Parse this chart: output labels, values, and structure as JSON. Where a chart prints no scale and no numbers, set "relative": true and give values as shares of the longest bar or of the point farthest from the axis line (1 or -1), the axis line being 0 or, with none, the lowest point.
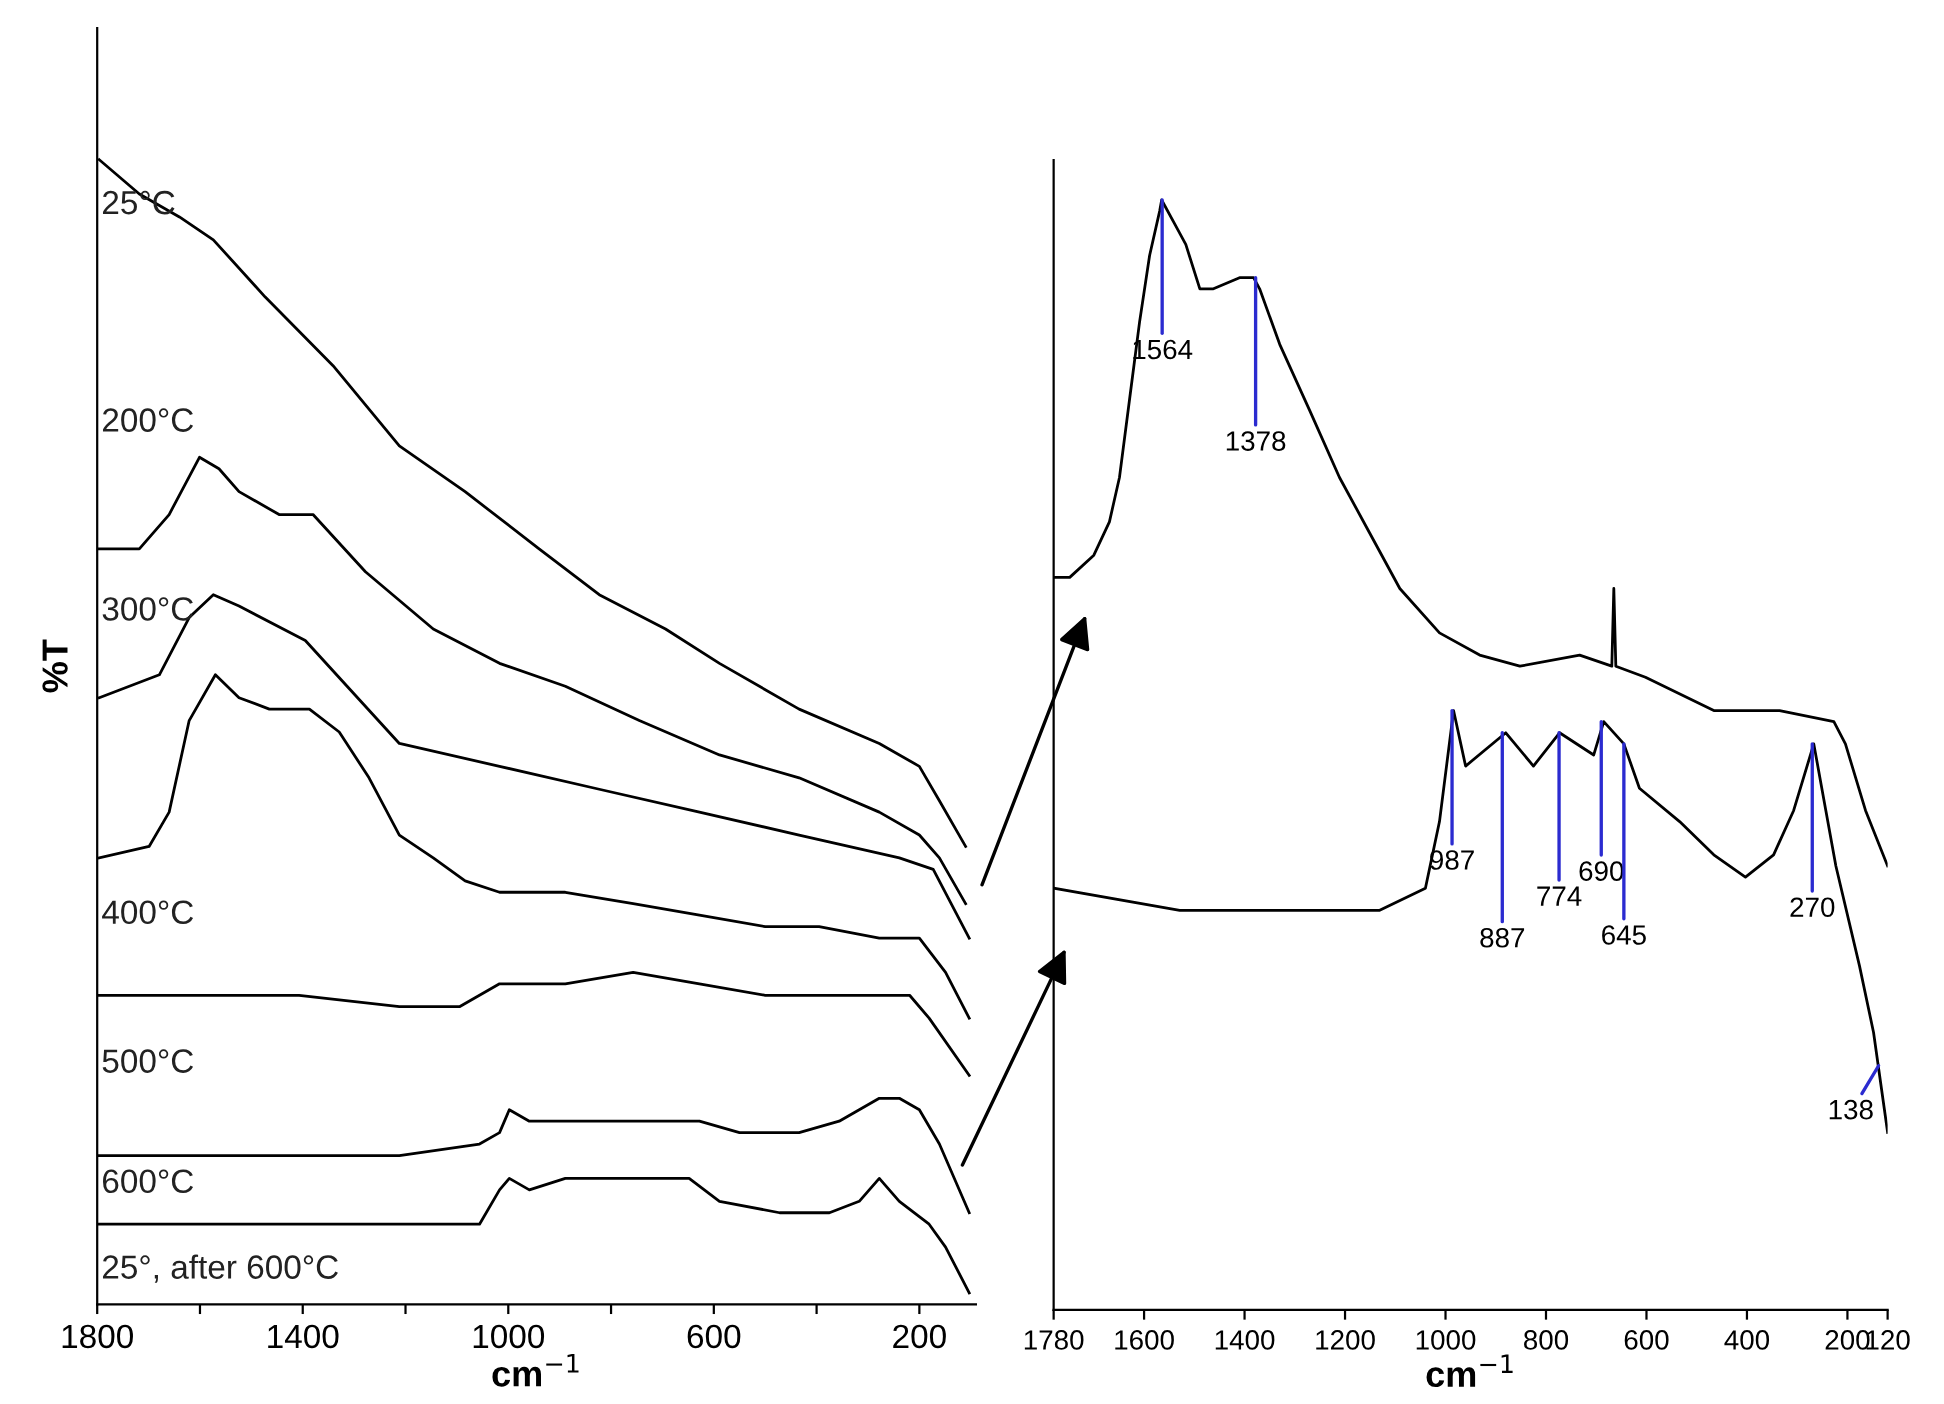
{
  "chart_data": [
    {
      "type": "line",
      "relative": true,
      "xlabel": "cm$^{−1}$",
      "ylabel": "%T",
      "xlim": [
        1800,
        90
      ],
      "xticks": [
        1800,
        {
          "value": 1600,
          "label": null
        },
        1400,
        {
          "value": 1200,
          "label": null
        },
        1000,
        {
          "value": 800,
          "label": null
        },
        600,
        {
          "value": 400,
          "label": null
        },
        200
      ],
      "series": [
        {
          "name": "25°C",
          "color": "#000000",
          "x": [
            1796,
            1718,
            1640,
            1574,
            1473,
            1341,
            1212,
            1084,
            940,
            823,
            694,
            589,
            434,
            278,
            200,
            161,
            110
          ],
          "values": [
            1.0,
            0.97,
            0.95,
            0.93,
            0.88,
            0.82,
            0.75,
            0.71,
            0.66,
            0.62,
            0.59,
            0.56,
            0.52,
            0.49,
            0.47,
            0.44,
            0.4
          ]
        },
        {
          "name": "200°C",
          "color": "#000000",
          "x": [
            1796,
            1718,
            1660,
            1601,
            1563,
            1524,
            1446,
            1380,
            1278,
            1146,
            1017,
            889,
            745,
            589,
            434,
            278,
            200,
            161,
            110
          ],
          "values": [
            0.66,
            0.66,
            0.69,
            0.74,
            0.73,
            0.71,
            0.69,
            0.69,
            0.64,
            0.59,
            0.56,
            0.54,
            0.51,
            0.48,
            0.46,
            0.43,
            0.41,
            0.39,
            0.35
          ]
        },
        {
          "name": "300°C",
          "color": "#000000",
          "x": [
            1796,
            1679,
            1621,
            1574,
            1524,
            1395,
            1212,
            1017,
            823,
            628,
            434,
            239,
            173,
            103
          ],
          "values": [
            0.53,
            0.55,
            0.6,
            0.62,
            0.61,
            0.58,
            0.49,
            0.47,
            0.45,
            0.43,
            0.41,
            0.39,
            0.38,
            0.32
          ]
        },
        {
          "name": "400°C",
          "color": "#000000",
          "x": [
            1796,
            1699,
            1660,
            1621,
            1570,
            1524,
            1465,
            1387,
            1329,
            1271,
            1212,
            1146,
            1084,
            1017,
            889,
            757,
            628,
            500,
            395,
            278,
            200,
            149,
            103
          ],
          "values": [
            0.39,
            0.4,
            0.43,
            0.51,
            0.55,
            0.53,
            0.52,
            0.52,
            0.5,
            0.46,
            0.41,
            0.39,
            0.37,
            0.36,
            0.36,
            0.35,
            0.34,
            0.33,
            0.33,
            0.32,
            0.32,
            0.29,
            0.25
          ]
        },
        {
          "name": "500°C",
          "color": "#000000",
          "x": [
            1796,
            1601,
            1407,
            1212,
            1095,
            1017,
            889,
            757,
            628,
            500,
            395,
            278,
            219,
            181,
            103
          ],
          "values": [
            0.27,
            0.27,
            0.27,
            0.26,
            0.26,
            0.28,
            0.28,
            0.29,
            0.28,
            0.27,
            0.27,
            0.27,
            0.27,
            0.25,
            0.2
          ]
        },
        {
          "name": "600°C",
          "color": "#000000",
          "x": [
            1796,
            1601,
            1407,
            1212,
            1056,
            1017,
            998,
            959,
            920,
            823,
            706,
            628,
            550,
            434,
            356,
            278,
            239,
            200,
            161,
            103
          ],
          "values": [
            0.13,
            0.13,
            0.13,
            0.13,
            0.14,
            0.15,
            0.17,
            0.16,
            0.16,
            0.16,
            0.16,
            0.16,
            0.15,
            0.15,
            0.16,
            0.18,
            0.18,
            0.17,
            0.14,
            0.08
          ]
        },
        {
          "name": "25°, after 600°C",
          "color": "#000000",
          "x": [
            1796,
            1601,
            1407,
            1212,
            1056,
            1017,
            998,
            959,
            889,
            764,
            648,
            589,
            472,
            375,
            317,
            278,
            239,
            181,
            149,
            103
          ],
          "values": [
            0.07,
            0.07,
            0.07,
            0.07,
            0.07,
            0.1,
            0.11,
            0.1,
            0.11,
            0.11,
            0.11,
            0.09,
            0.08,
            0.08,
            0.09,
            0.11,
            0.09,
            0.07,
            0.05,
            0.01
          ]
        }
      ]
    },
    {
      "type": "line",
      "relative": true,
      "xlabel": "cm$^{−1}$",
      "xlim": [
        1780,
        120
      ],
      "xticks": [
        1780,
        1600,
        1400,
        1200,
        1000,
        800,
        600,
        400,
        200,
        120
      ],
      "series": [
        {
          "color": "#000000",
          "x": [
            1780,
            1748,
            1700,
            1669,
            1649,
            1629,
            1609,
            1589,
            1569,
            1565,
            1541,
            1517,
            1489,
            1462,
            1410,
            1382,
            1370,
            1330,
            1270,
            1211,
            1151,
            1091,
            1012,
            932,
            852,
            733,
            669,
            665,
            661,
            602,
            466,
            335,
            227,
            204,
            164,
            120
          ],
          "values": [
            0.66,
            0.66,
            0.68,
            0.71,
            0.75,
            0.82,
            0.89,
            0.95,
            0.99,
            1.0,
            0.98,
            0.96,
            0.92,
            0.92,
            0.93,
            0.93,
            0.92,
            0.87,
            0.81,
            0.75,
            0.7,
            0.65,
            0.61,
            0.59,
            0.58,
            0.59,
            0.58,
            0.65,
            0.58,
            0.57,
            0.54,
            0.54,
            0.53,
            0.51,
            0.45,
            0.4
          ]
        },
        {
          "color": "#000000",
          "x": [
            1780,
            1529,
            1330,
            1131,
            1040,
            1012,
            984,
            960,
            880,
            825,
            773,
            705,
            685,
            645,
            614,
            534,
            466,
            403,
            347,
            307,
            267,
            243,
            223,
            176,
            148,
            120
          ],
          "values": [
            0.38,
            0.36,
            0.36,
            0.36,
            0.38,
            0.44,
            0.54,
            0.49,
            0.52,
            0.49,
            0.52,
            0.5,
            0.53,
            0.51,
            0.47,
            0.44,
            0.41,
            0.39,
            0.41,
            0.45,
            0.51,
            0.45,
            0.4,
            0.31,
            0.25,
            0.16
          ]
        }
      ],
      "annotations": [
        {
          "text": "1564",
          "x": 1564,
          "y": 1.0
        },
        {
          "text": "1378",
          "x": 1378,
          "y": 0.93
        },
        {
          "text": "987",
          "x": 987,
          "y": 0.54
        },
        {
          "text": "887",
          "x": 887,
          "y": 0.52
        },
        {
          "text": "774",
          "x": 774,
          "y": 0.52
        },
        {
          "text": "690",
          "x": 690,
          "y": 0.53
        },
        {
          "text": "645",
          "x": 645,
          "y": 0.51
        },
        {
          "text": "270",
          "x": 270,
          "y": 0.51
        },
        {
          "text": "138",
          "x": 138,
          "y": 0.22
        }
      ]
    }
  ]
}
